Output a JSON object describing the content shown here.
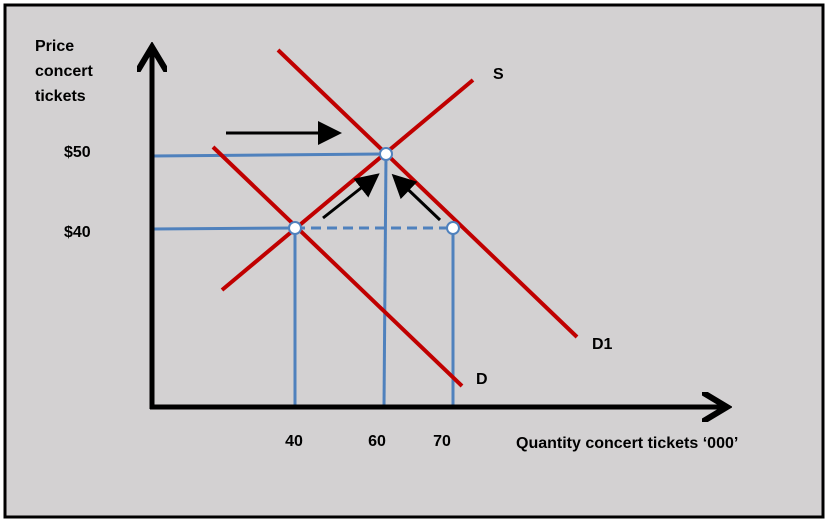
{
  "axes": {
    "y_label": [
      "Price",
      "concert",
      "tickets"
    ],
    "x_label": "Quantity concert tickets ‘000’",
    "y_ticks": [
      "$50",
      "$40"
    ],
    "x_ticks": [
      "40",
      "60",
      "70"
    ]
  },
  "curves": {
    "supply": "S",
    "demand": "D",
    "demand_shifted": "D1"
  }
}
